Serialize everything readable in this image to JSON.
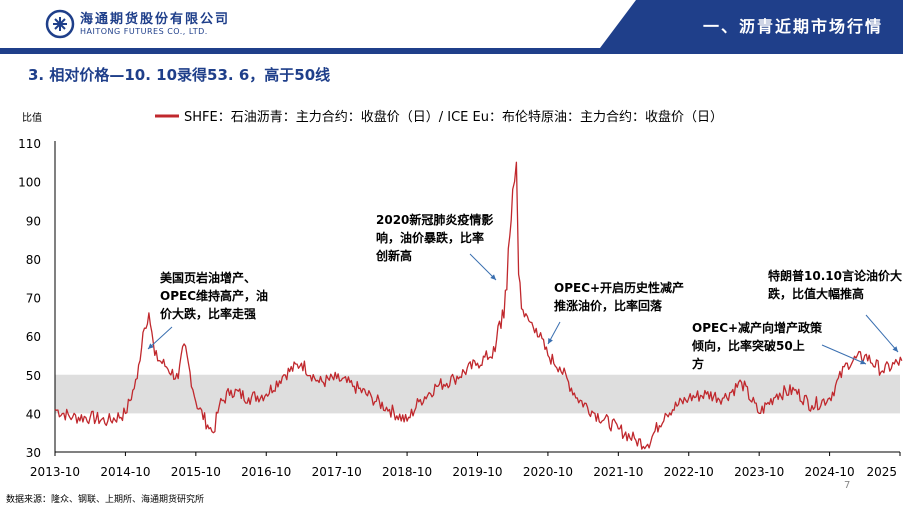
{
  "header": {
    "company_cn": "海通期货股份有限公司",
    "company_en": "HAITONG FUTURES CO., LTD.",
    "section": "一、沥青近期市场行情"
  },
  "slide": {
    "title": "3. 相对价格—10. 10录得53. 6，高于50线"
  },
  "footer": {
    "source": "数据来源：隆众、钢联、上期所、海通期货研究所",
    "page": "7"
  },
  "colors": {
    "brand": "#1f3f8a",
    "series": "#c0282d",
    "band": "#dedede"
  },
  "chart_data": {
    "type": "line",
    "ylabel": "比值",
    "ylim": [
      30,
      110
    ],
    "yticks": [
      30,
      40,
      50,
      60,
      70,
      80,
      90,
      100,
      110
    ],
    "xlim": [
      "2013-10",
      "2025-10"
    ],
    "xticks": [
      "2013-10",
      "2014-10",
      "2015-10",
      "2016-10",
      "2017-10",
      "2018-10",
      "2019-10",
      "2020-10",
      "2021-10",
      "2022-10",
      "2023-10",
      "2024-10",
      "2025"
    ],
    "grid": false,
    "legend_position": "top",
    "shaded_band": [
      40,
      50
    ],
    "series": [
      {
        "name": "SHFE：石油沥青：主力合约：收盘价（日）/ ICE Eu：布伦特原油：主力合约：收盘价（日）",
        "x": [
          "2013-10",
          "2014-01",
          "2014-04",
          "2014-07",
          "2014-10",
          "2014-12",
          "2015-01",
          "2015-02",
          "2015-03",
          "2015-05",
          "2015-07",
          "2015-08",
          "2015-10",
          "2015-12",
          "2016-01",
          "2016-02",
          "2016-04",
          "2016-07",
          "2016-10",
          "2017-01",
          "2017-04",
          "2017-07",
          "2017-10",
          "2018-01",
          "2018-04",
          "2018-07",
          "2018-10",
          "2018-12",
          "2019-03",
          "2019-06",
          "2019-10",
          "2020-01",
          "2020-03",
          "2020-04",
          "2020-04-20",
          "2020-05",
          "2020-06",
          "2020-08",
          "2020-10",
          "2020-12",
          "2021-03",
          "2021-06",
          "2021-10",
          "2022-01",
          "2022-03",
          "2022-06",
          "2022-10",
          "2023-01",
          "2023-04",
          "2023-07",
          "2023-10",
          "2024-01",
          "2024-04",
          "2024-07",
          "2024-10",
          "2025-01",
          "2025-04",
          "2025-07",
          "2025-10-10"
        ],
        "values": [
          41,
          39,
          39,
          38,
          40,
          49,
          61,
          66,
          55,
          52,
          49,
          58,
          43,
          37,
          35,
          42,
          46,
          44,
          45,
          50,
          53,
          48,
          49,
          47,
          44,
          41,
          38,
          43,
          47,
          49,
          53,
          56,
          72,
          98,
          105,
          76,
          65,
          62,
          55,
          52,
          44,
          40,
          36,
          33,
          32,
          40,
          44,
          45,
          44,
          48,
          40,
          45,
          46,
          42,
          44,
          53,
          55,
          51,
          53.6
        ]
      }
    ],
    "annotations": [
      "美国页岩油增产、OPEC维持高产，油价大跌，比率走强",
      "2020新冠肺炎疫情影响，油价暴跌，比率创新高",
      "OPEC+开启历史性减产推涨油价，比率回落",
      "OPEC+减产向增产政策倾向，比率突破50上方",
      "特朗普10.10言论油价大跌，比值大幅推高"
    ]
  }
}
